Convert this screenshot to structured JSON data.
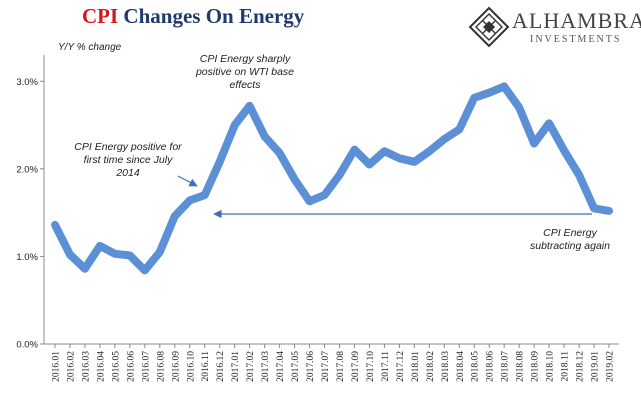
{
  "title": {
    "accent": "CPI",
    "rest": " Changes On Energy"
  },
  "logo": {
    "name": "ALHAMBRA",
    "sub": "INVESTMENTS",
    "icon": "diamond-lattice-icon"
  },
  "chart_data": {
    "type": "line",
    "ylabel": "Y/Y % change",
    "ylim": [
      0,
      3.3
    ],
    "yticks": [
      "0.0%",
      "1.0%",
      "2.0%",
      "3.0%"
    ],
    "ytick_values": [
      0,
      1,
      2,
      3
    ],
    "grid": false,
    "line_color": "#5b8fd6",
    "categories": [
      "2016.01",
      "2016.02",
      "2016.03",
      "2016.04",
      "2016.05",
      "2016.06",
      "2016.07",
      "2016.08",
      "2016.09",
      "2016.10",
      "2016.11",
      "2016.12",
      "2017.01",
      "2017.02",
      "2017.03",
      "2017.04",
      "2017.05",
      "2017.06",
      "2017.07",
      "2017.08",
      "2017.09",
      "2017.10",
      "2017.11",
      "2017.12",
      "2018.01",
      "2018.02",
      "2018.03",
      "2018.04",
      "2018.05",
      "2018.06",
      "2018.07",
      "2018.08",
      "2018.09",
      "2018.10",
      "2018.11",
      "2018.12",
      "2019.01",
      "2019.02"
    ],
    "series": [
      {
        "values": [
          1.36,
          1.02,
          0.86,
          1.12,
          1.03,
          1.01,
          0.84,
          1.05,
          1.46,
          1.64,
          1.7,
          2.08,
          2.5,
          2.72,
          2.37,
          2.18,
          1.88,
          1.63,
          1.7,
          1.93,
          2.22,
          2.05,
          2.2,
          2.12,
          2.08,
          2.2,
          2.34,
          2.45,
          2.81,
          2.87,
          2.94,
          2.7,
          2.29,
          2.52,
          2.21,
          1.93,
          1.55,
          1.52
        ]
      }
    ],
    "annotations": [
      {
        "lines": [
          "CPI Energy sharply",
          "positive on WTI base",
          "effects"
        ]
      },
      {
        "lines": [
          "CPI Energy positive for",
          "first time since July",
          "2014"
        ]
      },
      {
        "lines": [
          "CPI Energy",
          "subtracting again"
        ]
      }
    ]
  }
}
